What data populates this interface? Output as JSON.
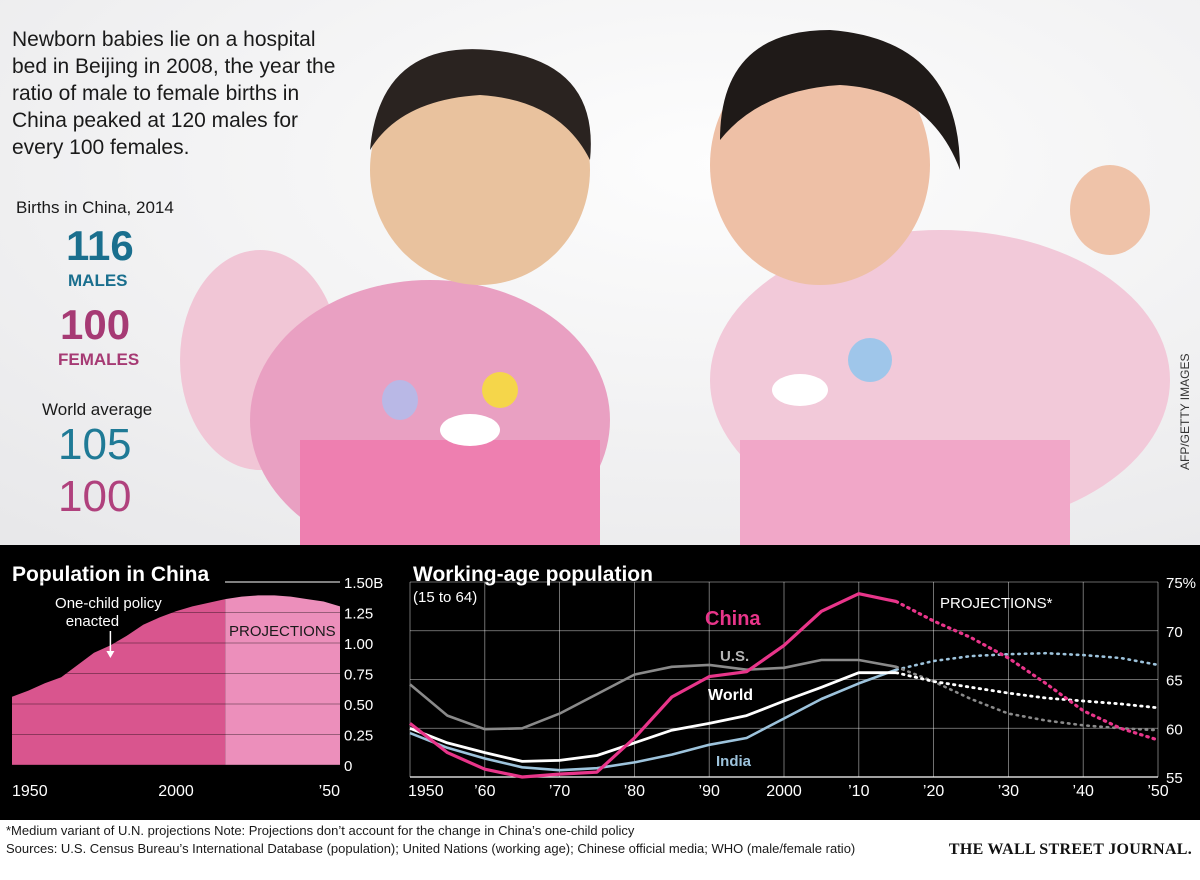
{
  "caption": "Newborn babies lie on a hospital bed in Beijing in 2008, the year the ratio of male to female births in China peaked at 120 males for every 100 females.",
  "births": {
    "title": "Births in China, 2014",
    "males_value": "116",
    "males_label": "MALES",
    "females_value": "100",
    "females_label": "FEMALES"
  },
  "world_average": {
    "title": "World average",
    "males": "105",
    "females": "100"
  },
  "photo_credit": "AFP/GETTY IMAGES",
  "photo_subject": "two newborn babies in pink blankets",
  "colors": {
    "teal": "#1a6f8e",
    "magenta": "#a63a74",
    "china_line": "#e8358a",
    "us_line": "#8a8a8a",
    "india_line": "#9dc3dc",
    "world_line": "#ffffff",
    "area_fill": "#d9558e",
    "area_projection": "#ec8fbb"
  },
  "footer": {
    "note": "*Medium variant of U.N. projections   Note: Projections don’t account for the change in China’s one-child policy",
    "sources": "Sources: U.S. Census Bureau’s International Database (population); United Nations (working age); Chinese official media; WHO (male/female ratio)",
    "publisher": "THE WALL STREET JOURNAL."
  },
  "chart_data": [
    {
      "type": "area",
      "title": "Population in China",
      "unit_note": "billions",
      "x": [
        1950,
        1955,
        1960,
        1965,
        1970,
        1975,
        1980,
        1985,
        1990,
        1995,
        2000,
        2005,
        2010,
        2015,
        2020,
        2025,
        2030,
        2035,
        2040,
        2045,
        2050
      ],
      "values": [
        0.56,
        0.61,
        0.67,
        0.72,
        0.82,
        0.92,
        0.98,
        1.06,
        1.15,
        1.21,
        1.26,
        1.3,
        1.33,
        1.36,
        1.38,
        1.39,
        1.39,
        1.38,
        1.36,
        1.34,
        1.3
      ],
      "projection_start": 2015,
      "annotation": {
        "x": 1980,
        "text_line1": "One-child policy",
        "text_line2": "enacted"
      },
      "projection_label": "PROJECTIONS",
      "xlim": [
        1950,
        2050
      ],
      "ylim": [
        0,
        1.5
      ],
      "y_ticks": [
        "0",
        "0.25",
        "0.50",
        "0.75",
        "1.00",
        "1.25",
        "1.50B"
      ],
      "x_ticks": [
        "1950",
        "2000",
        "’50"
      ],
      "grid": true
    },
    {
      "type": "line",
      "title": "Working-age population",
      "subtitle": "(15 to 64)",
      "xlim": [
        1950,
        2050
      ],
      "ylim": [
        55,
        75
      ],
      "x_ticks": [
        "1950",
        "’60",
        "’70",
        "’80",
        "’90",
        "2000",
        "’10",
        "’20",
        "’30",
        "’40",
        "’50"
      ],
      "y_ticks": [
        "55",
        "60",
        "65",
        "70",
        "75%"
      ],
      "projection_label": "PROJECTIONS*",
      "projection_start": 2015,
      "series": [
        {
          "name": "China",
          "x": [
            1950,
            1955,
            1960,
            1965,
            1970,
            1975,
            1980,
            1985,
            1990,
            1995,
            2000,
            2005,
            2010,
            2015
          ],
          "values": [
            60.5,
            57.5,
            55.8,
            55.0,
            55.3,
            55.5,
            59.0,
            63.2,
            65.3,
            65.8,
            68.5,
            72.0,
            73.8,
            73.0
          ],
          "proj_x": [
            2015,
            2020,
            2025,
            2030,
            2035,
            2040,
            2045,
            2050
          ],
          "proj_values": [
            73.0,
            71.0,
            69.3,
            67.2,
            64.6,
            61.8,
            60.0,
            58.8
          ]
        },
        {
          "name": "U.S.",
          "x": [
            1950,
            1955,
            1960,
            1965,
            1970,
            1975,
            1980,
            1985,
            1990,
            1995,
            2000,
            2005,
            2010,
            2015
          ],
          "values": [
            64.5,
            61.3,
            59.9,
            60.0,
            61.5,
            63.5,
            65.5,
            66.3,
            66.5,
            66.0,
            66.2,
            67.0,
            67.0,
            66.3
          ],
          "proj_x": [
            2015,
            2020,
            2025,
            2030,
            2035,
            2040,
            2045,
            2050
          ],
          "proj_values": [
            66.3,
            64.8,
            63.0,
            61.5,
            60.8,
            60.3,
            60.0,
            59.8
          ]
        },
        {
          "name": "World",
          "x": [
            1950,
            1955,
            1960,
            1965,
            1970,
            1975,
            1980,
            1985,
            1990,
            1995,
            2000,
            2005,
            2010,
            2015
          ],
          "values": [
            60.0,
            58.5,
            57.5,
            56.6,
            56.7,
            57.2,
            58.5,
            59.8,
            60.5,
            61.3,
            62.8,
            64.2,
            65.7,
            65.7
          ],
          "proj_x": [
            2015,
            2020,
            2025,
            2030,
            2035,
            2040,
            2045,
            2050
          ],
          "proj_values": [
            65.7,
            64.8,
            64.2,
            63.6,
            63.1,
            62.8,
            62.5,
            62.1
          ]
        },
        {
          "name": "India",
          "x": [
            1950,
            1955,
            1960,
            1965,
            1970,
            1975,
            1980,
            1985,
            1990,
            1995,
            2000,
            2005,
            2010,
            2015
          ],
          "values": [
            59.5,
            58.0,
            56.9,
            56.0,
            55.7,
            55.9,
            56.5,
            57.3,
            58.3,
            59.0,
            61.0,
            63.0,
            64.6,
            66.0
          ],
          "proj_x": [
            2015,
            2020,
            2025,
            2030,
            2035,
            2040,
            2045,
            2050
          ],
          "proj_values": [
            66.0,
            66.9,
            67.4,
            67.6,
            67.7,
            67.5,
            67.2,
            66.5
          ]
        }
      ],
      "grid": true
    }
  ]
}
